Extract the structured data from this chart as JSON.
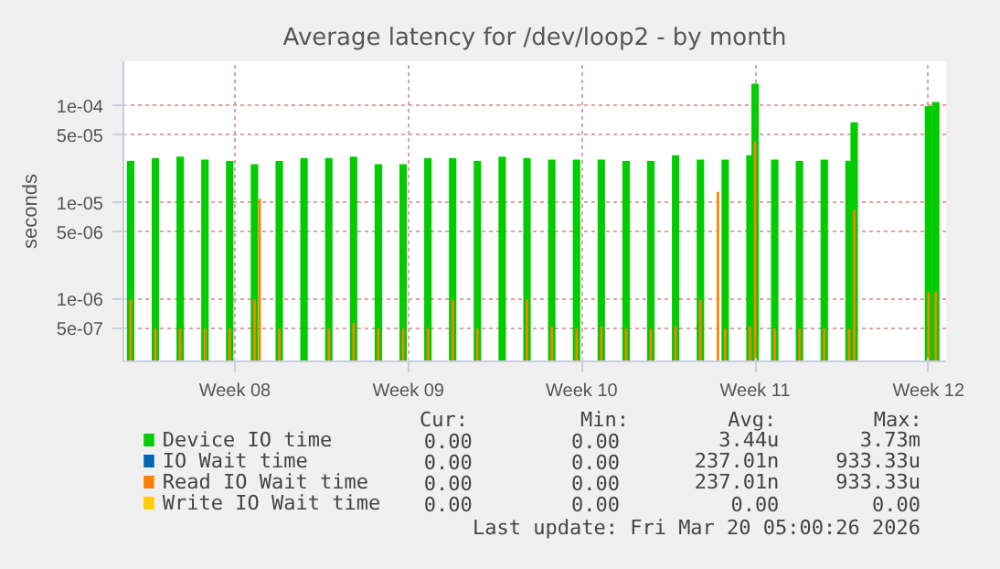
{
  "chart_data": {
    "type": "bar",
    "title": "Average latency for /dev/loop2 - by month",
    "ylabel": "seconds",
    "xlim": [
      "2026-02-15T00:00",
      "2026-03-20T05:00"
    ],
    "xticks": [
      {
        "value": "2026-02-19T12:00",
        "label": "Week 08"
      },
      {
        "value": "2026-02-26T12:00",
        "label": "Week 09"
      },
      {
        "value": "2026-03-05T12:00",
        "label": "Week 10"
      },
      {
        "value": "2026-03-12T12:00",
        "label": "Week 11"
      },
      {
        "value": "2026-03-19T12:00",
        "label": "Week 12"
      }
    ],
    "ylim": [
      2.3e-07,
      0.00029
    ],
    "log": "y",
    "yticks": [
      {
        "value": 5e-07,
        "label": "5e-07"
      },
      {
        "value": 1e-06,
        "label": "1e-06"
      },
      {
        "value": 5e-06,
        "label": "5e-06"
      },
      {
        "value": 1e-05,
        "label": "1e-05"
      },
      {
        "value": 5e-05,
        "label": "5e-05"
      },
      {
        "value": 0.0001,
        "label": "1e-04"
      }
    ],
    "grid": true,
    "legend": "bottom",
    "series": [
      {
        "name": "Device IO time",
        "color": "#00cc00",
        "x": [
          "2026-02-15T07:00",
          "2026-02-16T07:00",
          "2026-02-17T07:00",
          "2026-02-18T07:00",
          "2026-02-19T07:00",
          "2026-02-20T07:00",
          "2026-02-21T07:00",
          "2026-02-22T07:00",
          "2026-02-23T07:00",
          "2026-02-24T07:00",
          "2026-02-25T07:00",
          "2026-02-26T07:00",
          "2026-02-27T07:00",
          "2026-02-28T07:00",
          "2026-03-01T07:00",
          "2026-03-02T07:00",
          "2026-03-03T07:00",
          "2026-03-04T07:00",
          "2026-03-05T07:00",
          "2026-03-06T07:00",
          "2026-03-07T07:00",
          "2026-03-08T07:00",
          "2026-03-09T07:00",
          "2026-03-10T07:00",
          "2026-03-11T07:00",
          "2026-03-12T07:00",
          "2026-03-12T12:00",
          "2026-03-13T07:00",
          "2026-03-14T07:00",
          "2026-03-15T07:00",
          "2026-03-16T07:00",
          "2026-03-16T12:00",
          "2026-03-19T12:00",
          "2026-03-19T19:00"
        ],
        "values": [
          2.7e-05,
          2.9e-05,
          3e-05,
          2.8e-05,
          2.7e-05,
          2.5e-05,
          2.7e-05,
          2.9e-05,
          2.9e-05,
          3e-05,
          2.5e-05,
          2.5e-05,
          2.9e-05,
          2.9e-05,
          2.7e-05,
          3e-05,
          2.9e-05,
          2.8e-05,
          2.8e-05,
          2.8e-05,
          2.7e-05,
          2.7e-05,
          3.1e-05,
          2.8e-05,
          2.8e-05,
          3.1e-05,
          0.00017,
          2.8e-05,
          2.7e-05,
          2.8e-05,
          2.7e-05,
          6.8e-05,
          0.0001,
          0.00011
        ]
      },
      {
        "name": "IO Wait time",
        "color": "#0066b3"
      },
      {
        "name": "Read IO Wait time",
        "color": "#ff8000",
        "x": [
          "2026-02-15T07:00",
          "2026-02-16T07:00",
          "2026-02-17T07:00",
          "2026-02-18T07:00",
          "2026-02-19T07:00",
          "2026-02-20T07:00",
          "2026-02-20T12:00",
          "2026-02-21T07:00",
          "2026-02-23T07:00",
          "2026-02-24T07:00",
          "2026-02-25T07:00",
          "2026-02-26T07:00",
          "2026-02-27T07:00",
          "2026-02-28T07:00",
          "2026-03-01T07:00",
          "2026-03-03T07:00",
          "2026-03-04T07:00",
          "2026-03-05T07:00",
          "2026-03-06T07:00",
          "2026-03-07T07:00",
          "2026-03-08T07:00",
          "2026-03-09T07:00",
          "2026-03-10T07:00",
          "2026-03-11T00:00",
          "2026-03-11T07:00",
          "2026-03-12T07:00",
          "2026-03-12T12:00",
          "2026-03-13T07:00",
          "2026-03-14T07:00",
          "2026-03-15T07:00",
          "2026-03-16T07:00",
          "2026-03-16T12:00",
          "2026-03-19T12:00",
          "2026-03-19T19:00"
        ],
        "values": [
          1e-06,
          5e-07,
          5e-07,
          5e-07,
          5e-07,
          1e-06,
          1.1e-05,
          5e-07,
          5e-07,
          5.7e-07,
          5e-07,
          5e-07,
          5e-07,
          1e-06,
          5e-07,
          1e-06,
          5.3e-07,
          5e-07,
          5.3e-07,
          5e-07,
          5e-07,
          5.3e-07,
          1e-06,
          1.3e-05,
          5e-07,
          5.3e-07,
          4.3e-05,
          5e-07,
          5e-07,
          5e-07,
          5e-07,
          8.5e-06,
          1.2e-06,
          1.2e-06
        ]
      },
      {
        "name": "Write IO Wait time",
        "color": "#ffcc00"
      }
    ],
    "annotations": [
      "Cur:",
      "Min:",
      "Avg:",
      "Max:",
      "0.00",
      "0.00",
      "3.44u",
      "3.73m",
      "0.00",
      "0.00",
      "237.01n",
      "933.33u",
      "0.00",
      "0.00",
      "237.01n",
      "933.33u",
      "0.00",
      "0.00",
      "0.00",
      "0.00",
      "Last update: Fri Mar 20 05:00:26 2026"
    ]
  }
}
